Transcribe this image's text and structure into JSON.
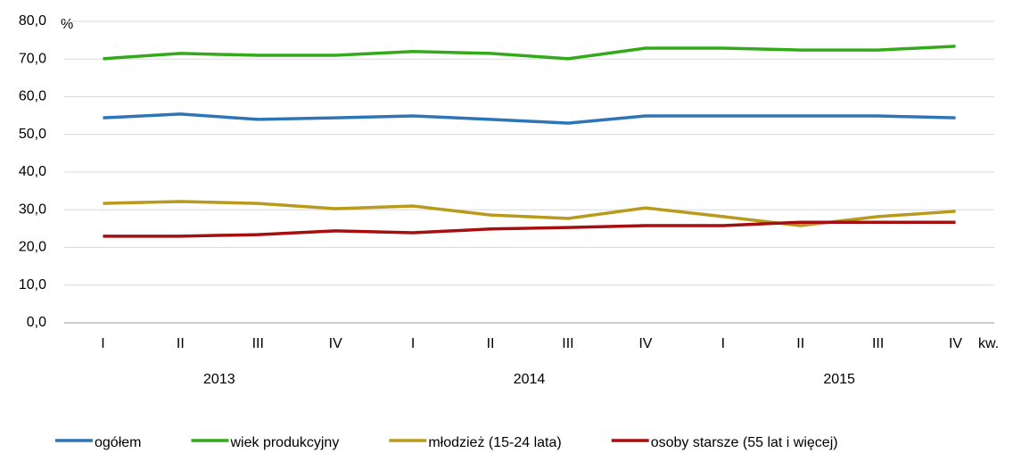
{
  "chart_data": {
    "type": "line",
    "unit_label": "%",
    "x_label": "kw.",
    "categories": [
      "I",
      "II",
      "III",
      "IV",
      "I",
      "II",
      "III",
      "IV",
      "I",
      "II",
      "III",
      "IV"
    ],
    "years": [
      "2013",
      "2014",
      "2015"
    ],
    "series": [
      {
        "name": "ogółem",
        "color": "#2e75b6",
        "values": [
          54.4,
          55.4,
          54.0,
          54.4,
          54.9,
          54.0,
          53.0,
          54.9,
          54.9,
          54.9,
          54.9,
          54.4
        ]
      },
      {
        "name": "wiek produkcyjny",
        "color": "#33aa1a",
        "values": [
          70.1,
          71.5,
          71.0,
          71.0,
          72.0,
          71.5,
          70.1,
          72.9,
          72.9,
          72.4,
          72.4,
          73.4
        ]
      },
      {
        "name": "młodzież  (15-24 lata)",
        "color": "#b89a1c",
        "values": [
          31.7,
          32.2,
          31.7,
          30.3,
          31.0,
          28.6,
          27.7,
          30.5,
          28.2,
          25.8,
          28.2,
          29.6
        ]
      },
      {
        "name": "osoby starsze (55 lat i więcej)",
        "color": "#a50f0f",
        "values": [
          23.0,
          23.0,
          23.4,
          24.4,
          23.9,
          24.9,
          25.3,
          25.8,
          25.8,
          26.7,
          26.7,
          26.7
        ]
      }
    ],
    "ylim": [
      0,
      80
    ],
    "yticks": [
      {
        "value": 0,
        "label": "0,0"
      },
      {
        "value": 10,
        "label": "10,0"
      },
      {
        "value": 20,
        "label": "20,0"
      },
      {
        "value": 30,
        "label": "30,0"
      },
      {
        "value": 40,
        "label": "40,0"
      },
      {
        "value": 50,
        "label": "50,0"
      },
      {
        "value": 60,
        "label": "60,0"
      },
      {
        "value": 70,
        "label": "70,0"
      },
      {
        "value": 80,
        "label": "80,0"
      }
    ],
    "grid": true,
    "legend": "bottom"
  }
}
